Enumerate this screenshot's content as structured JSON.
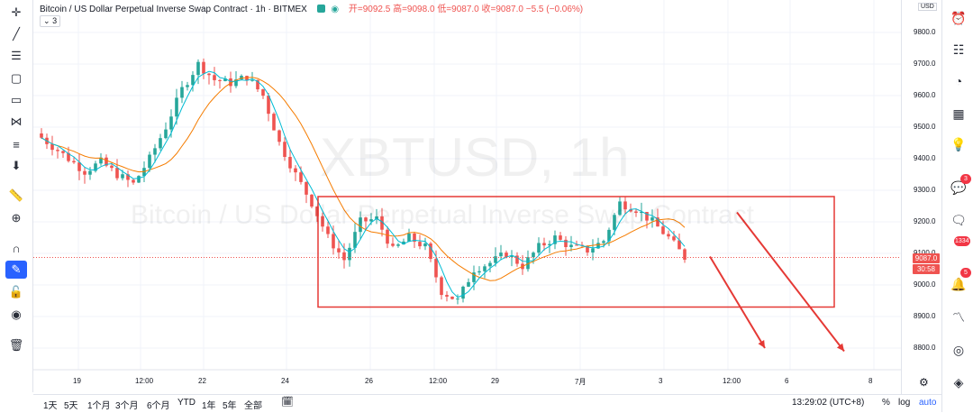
{
  "legend": {
    "title": "Bitcoin / US Dollar Perpetual Inverse Swap Contract · 1h · BITMEX",
    "open": "开=9092.5",
    "high": "高=9098.0",
    "low": "低=9087.0",
    "close": "收=9087.0",
    "change": "−5.5 (−0.06%)",
    "indicator_count": "3"
  },
  "watermark": {
    "symbol": "XBTUSD, 1h",
    "name": "Bitcoin / US Dollar Perpetual Inverse Swap Contract"
  },
  "price_axis": {
    "currency": "USD",
    "current_price": "9087.0",
    "countdown": "30:58"
  },
  "bottom_bar": {
    "ranges": [
      "1天",
      "5天",
      "1个月",
      "3个月",
      "6个月",
      "YTD",
      "1年",
      "5年",
      "全部"
    ],
    "clock": "13:29:02 (UTC+8)",
    "percent_label": "%",
    "log_label": "log",
    "auto_label": "auto"
  },
  "right_toolbar": {
    "badges": [
      "3",
      "1334",
      "5"
    ]
  },
  "colors": {
    "up": "#26a69a",
    "down": "#ef5350",
    "ma_fast": "#00bcd4",
    "ma_slow": "#f57c00",
    "annotation": "#e53935",
    "accent": "#2962ff"
  },
  "chart_data": {
    "type": "candlestick",
    "symbol": "XBTUSD",
    "interval": "1h",
    "exchange": "BITMEX",
    "y_axis": {
      "ticks": [
        8800,
        8900,
        9000,
        9100,
        9200,
        9300,
        9400,
        9500,
        9600,
        9700,
        9800
      ],
      "tick_labels": [
        "8800.0",
        "8900.0",
        "9000.0",
        "9100.0",
        "9200.0",
        "9300.0",
        "9400.0",
        "9500.0",
        "9600.0",
        "9700.0",
        "9800.0"
      ],
      "range": [
        8720,
        9845
      ]
    },
    "x_axis": {
      "ticks": [
        "19",
        "12:00",
        "22",
        "24",
        "26",
        "12:00",
        "29",
        "7月",
        "3",
        "12:00",
        "6",
        "8"
      ]
    },
    "current_price": 9087.0,
    "series_path": [
      [
        0,
        9480
      ],
      [
        3,
        9440
      ],
      [
        6,
        9400
      ],
      [
        9,
        9360
      ],
      [
        12,
        9390
      ],
      [
        15,
        9350
      ],
      [
        18,
        9320
      ],
      [
        21,
        9400
      ],
      [
        24,
        9500
      ],
      [
        27,
        9620
      ],
      [
        30,
        9700
      ],
      [
        33,
        9650
      ],
      [
        36,
        9640
      ],
      [
        39,
        9660
      ],
      [
        42,
        9600
      ],
      [
        45,
        9450
      ],
      [
        48,
        9350
      ],
      [
        51,
        9260
      ],
      [
        54,
        9150
      ],
      [
        57,
        9080
      ],
      [
        60,
        9200
      ],
      [
        63,
        9210
      ],
      [
        66,
        9110
      ],
      [
        69,
        9150
      ],
      [
        72,
        9120
      ],
      [
        75,
        8980
      ],
      [
        78,
        8950
      ],
      [
        81,
        9050
      ],
      [
        84,
        9070
      ],
      [
        87,
        9100
      ],
      [
        90,
        9060
      ],
      [
        93,
        9120
      ],
      [
        96,
        9150
      ],
      [
        99,
        9120
      ],
      [
        102,
        9110
      ],
      [
        105,
        9140
      ],
      [
        108,
        9260
      ],
      [
        111,
        9240
      ],
      [
        114,
        9200
      ],
      [
        117,
        9150
      ],
      [
        120,
        9087
      ]
    ],
    "annotations": {
      "rectangle": {
        "price_high": 9280,
        "price_low": 8930
      },
      "arrows": [
        {
          "from_price": 9090,
          "to_price": 8800
        },
        {
          "from_price": 9230,
          "to_price": 8790
        }
      ]
    }
  }
}
